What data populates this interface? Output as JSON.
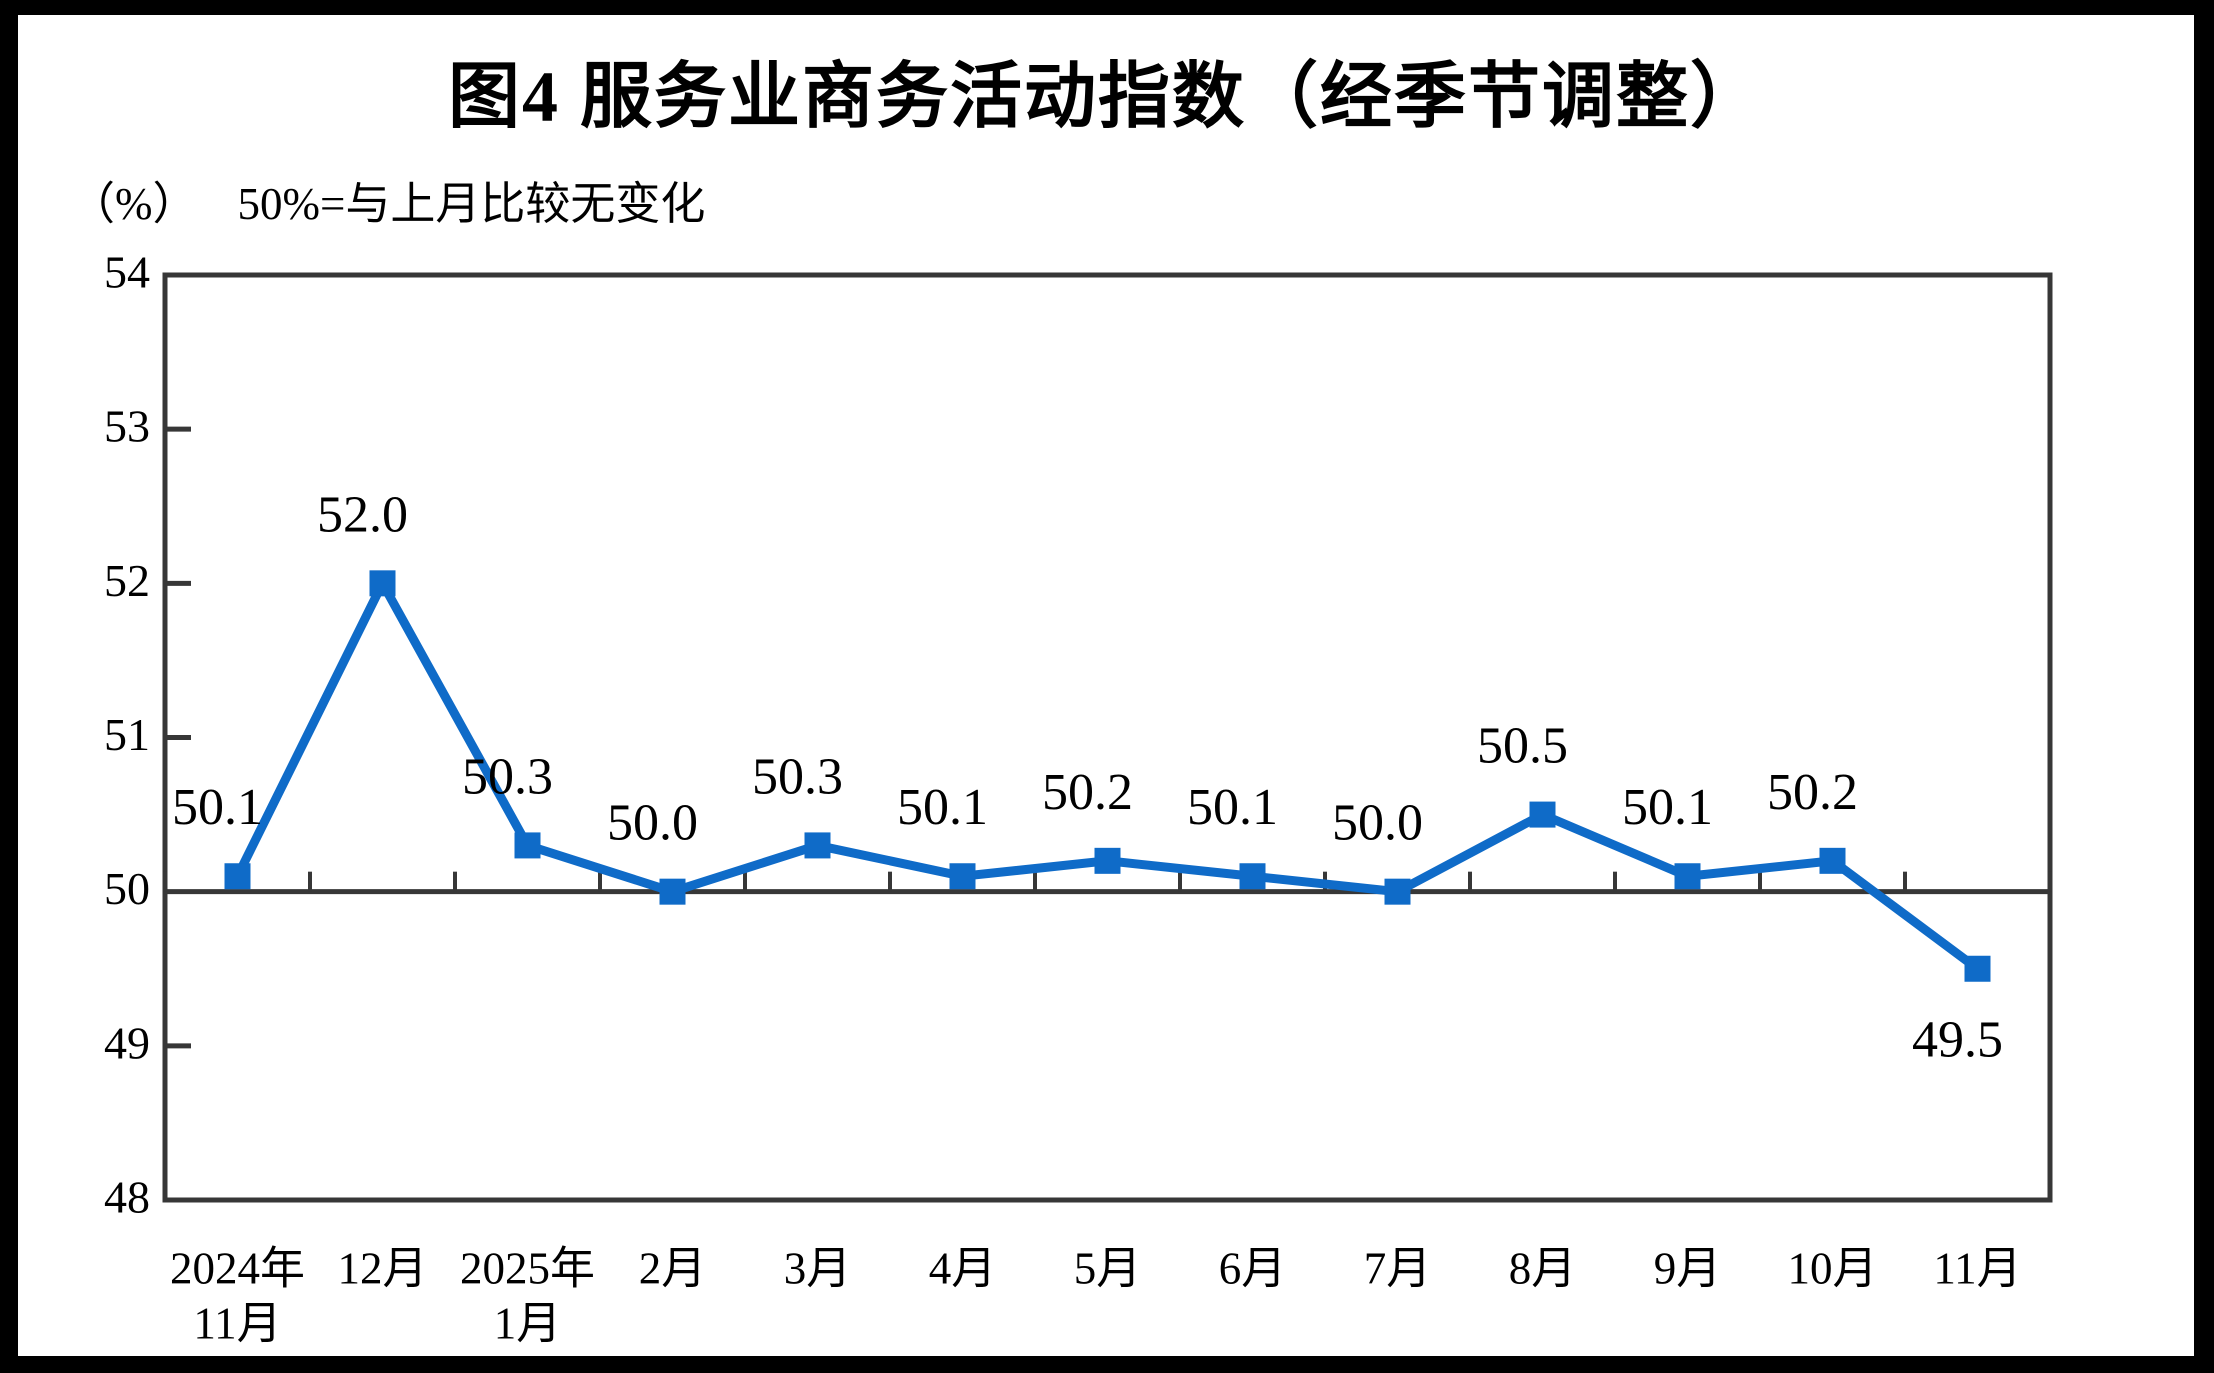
{
  "chart_data": {
    "type": "line",
    "title": "图4  服务业商务活动指数（经季节调整）",
    "unit_label": "（%）",
    "subtitle": "50%=与上月比较无变化",
    "categories": [
      [
        "2024年",
        "11月"
      ],
      [
        "12月"
      ],
      [
        "2025年",
        "1月"
      ],
      [
        "2月"
      ],
      [
        "3月"
      ],
      [
        "4月"
      ],
      [
        "5月"
      ],
      [
        "6月"
      ],
      [
        "7月"
      ],
      [
        "8月"
      ],
      [
        "9月"
      ],
      [
        "10月"
      ],
      [
        "11月"
      ]
    ],
    "values": [
      50.1,
      52.0,
      50.3,
      50.0,
      50.3,
      50.1,
      50.2,
      50.1,
      50.0,
      50.5,
      50.1,
      50.2,
      49.5
    ],
    "point_labels": [
      "50.1",
      "52.0",
      "50.3",
      "50.0",
      "50.3",
      "50.1",
      "50.2",
      "50.1",
      "50.0",
      "50.5",
      "50.1",
      "50.2",
      "49.5"
    ],
    "ylim": [
      48,
      54
    ],
    "yticks": [
      48,
      49,
      50,
      51,
      52,
      53,
      54
    ],
    "baseline_value": 50,
    "grid": "off",
    "legend": "none",
    "line_color": "#0F6BC8",
    "marker": "square",
    "axis_color": "#373737",
    "text_color": "#000000",
    "background_color": "#FFFFFF",
    "border_color": "#000000"
  }
}
